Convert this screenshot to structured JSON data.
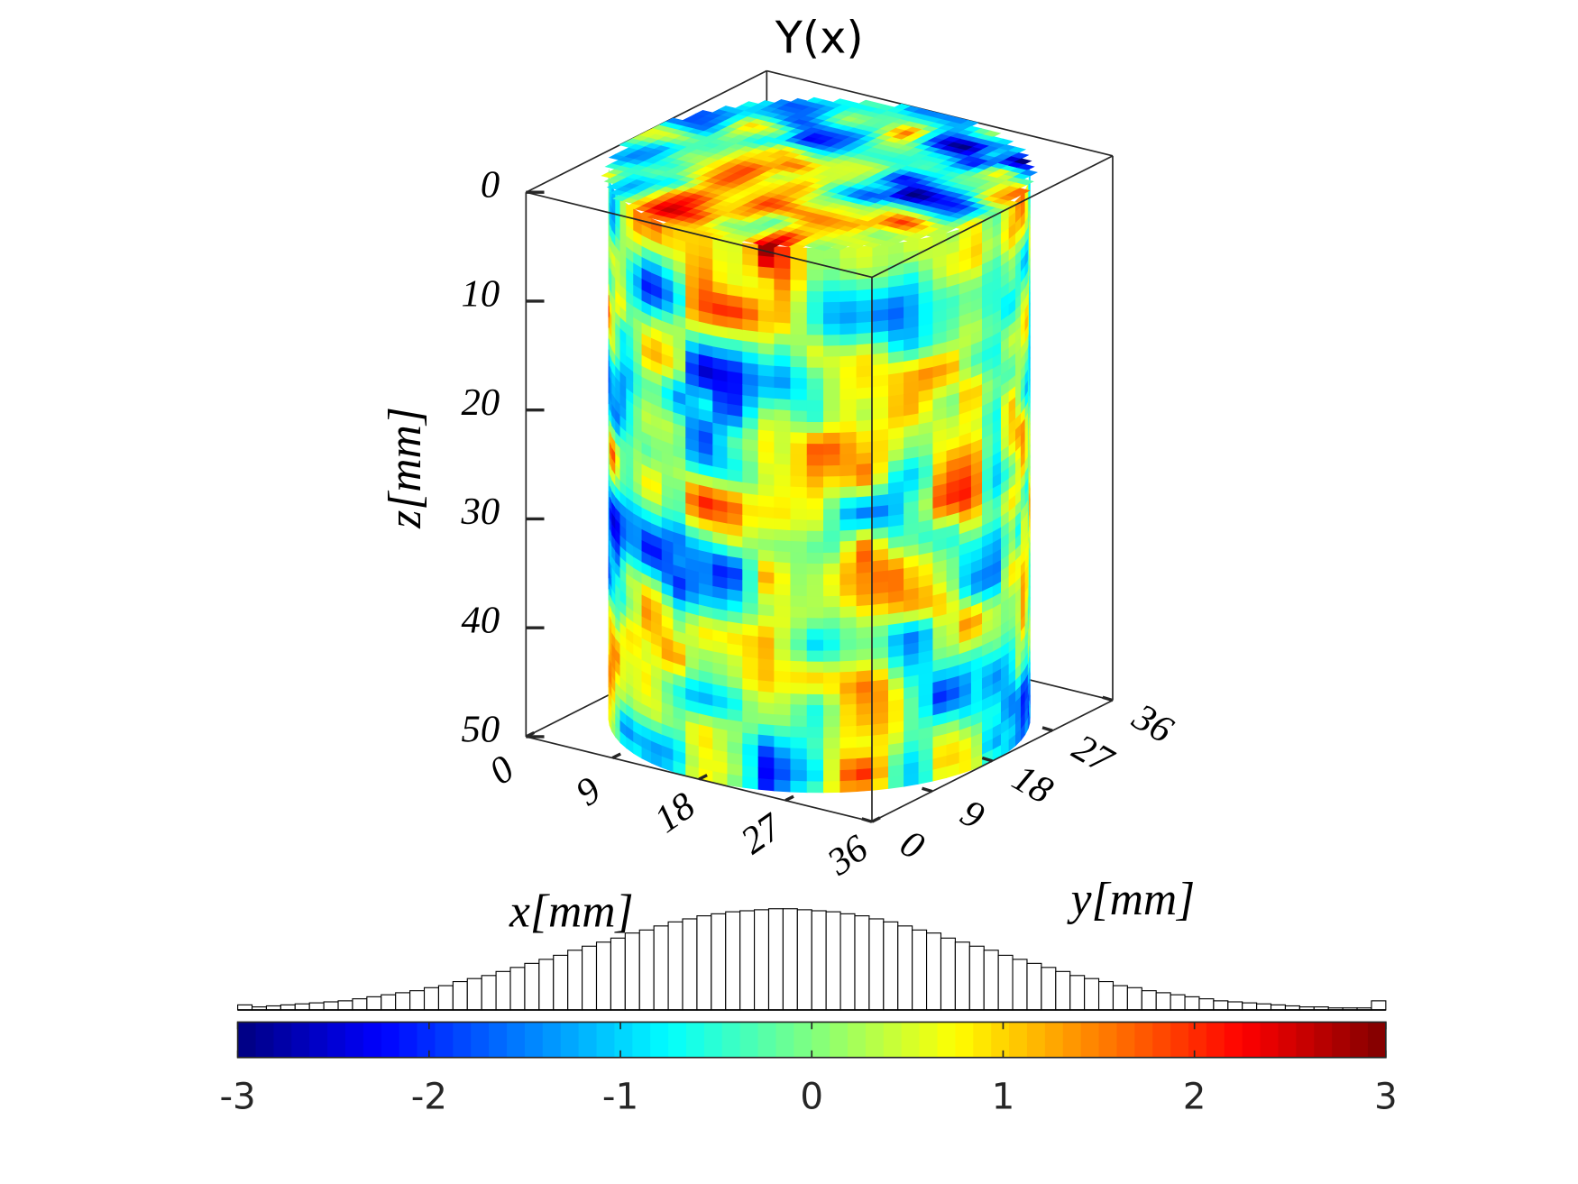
{
  "chart_data": [
    {
      "type": "voxel3d",
      "title": "Y(x)",
      "xlabel": "x[mm]",
      "ylabel": "y[mm]",
      "zlabel": "z[mm]",
      "xlim": [
        0,
        36
      ],
      "ylim": [
        0,
        36
      ],
      "zlim": [
        0,
        50
      ],
      "xticks": [
        0,
        9,
        18,
        27,
        36
      ],
      "yticks": [
        0,
        9,
        18,
        27,
        36
      ],
      "zticks": [
        0,
        10,
        20,
        30,
        40,
        50
      ],
      "zdir": "reverse",
      "colormap": "jet",
      "clim": [
        -3,
        3
      ]
    },
    {
      "type": "histogram",
      "bins": [
        -3,
        -2.925,
        -2.85,
        -2.775,
        -2.7,
        -2.625,
        -2.55,
        -2.475,
        -2.4,
        -2.325,
        -2.25,
        -2.175,
        -2.1,
        -2.025,
        -1.95,
        -1.875,
        -1.8,
        -1.725,
        -1.65,
        -1.575,
        -1.5,
        -1.425,
        -1.35,
        -1.275,
        -1.2,
        -1.125,
        -1.05,
        -0.975,
        -0.9,
        -0.825,
        -0.75,
        -0.675,
        -0.6,
        -0.525,
        -0.45,
        -0.375,
        -0.3,
        -0.225,
        -0.15,
        -0.075,
        0,
        0.075,
        0.15,
        0.225,
        0.3,
        0.375,
        0.45,
        0.525,
        0.6,
        0.675,
        0.75,
        0.825,
        0.9,
        0.975,
        1.05,
        1.125,
        1.2,
        1.275,
        1.35,
        1.425,
        1.5,
        1.575,
        1.65,
        1.725,
        1.8,
        1.875,
        1.95,
        2.025,
        2.1,
        2.175,
        2.25,
        2.325,
        2.4,
        2.475,
        2.55,
        2.625,
        2.7,
        2.775,
        2.85,
        2.925,
        3
      ],
      "values": [
        5,
        3,
        4,
        5,
        6,
        7,
        8,
        9,
        11,
        13,
        15,
        17,
        19,
        22,
        24,
        28,
        31,
        34,
        38,
        42,
        46,
        50,
        54,
        59,
        63,
        67,
        71,
        76,
        79,
        83,
        87,
        90,
        93,
        95,
        97,
        98,
        99,
        100,
        100,
        99,
        98,
        97,
        95,
        93,
        90,
        87,
        83,
        79,
        76,
        71,
        67,
        63,
        59,
        54,
        50,
        46,
        42,
        38,
        34,
        31,
        28,
        24,
        22,
        19,
        17,
        15,
        13,
        11,
        9,
        8,
        7,
        6,
        5,
        4,
        3,
        3,
        2,
        2,
        2,
        9
      ],
      "ylim": [
        0,
        100
      ],
      "color": "#ffffff",
      "edgecolor": "#000000",
      "colormap": "jet",
      "clim": [
        -3,
        3
      ],
      "cticks": [
        -3,
        -2,
        -1,
        0,
        1,
        2,
        3
      ]
    }
  ]
}
